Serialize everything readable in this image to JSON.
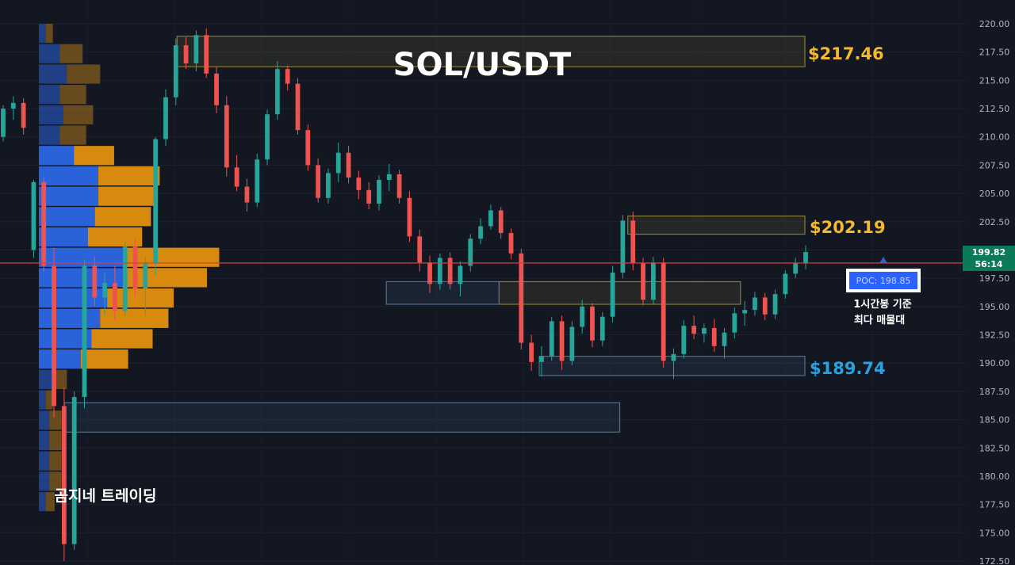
{
  "chart_data": {
    "type": "candlestick",
    "title": "SOL/USDT",
    "watermark": "곰지네 트레이딩",
    "y_axis": {
      "range": [
        172.5,
        220.3
      ],
      "ticks": [
        "220.00",
        "217.50",
        "215.00",
        "212.50",
        "210.00",
        "207.50",
        "205.00",
        "202.50",
        "200.00",
        "197.50",
        "195.00",
        "192.50",
        "190.00",
        "187.50",
        "185.00",
        "182.50",
        "180.00",
        "177.50",
        "175.00",
        "172.50"
      ],
      "grid": true
    },
    "current_price": {
      "value": "199.82",
      "countdown": "56:14",
      "line_level": 198.85,
      "color": "#e53935"
    },
    "levels": [
      {
        "label": "$217.46",
        "color": "#f5b82e"
      },
      {
        "label": "$202.19",
        "color": "#f5b82e"
      },
      {
        "label": "$189.74",
        "color": "#29a3e0"
      }
    ],
    "zones": [
      {
        "kind": "resistance",
        "y_top": 218.9,
        "y_bottom": 216.2,
        "x_from": 0.22,
        "x_to": 1.0
      },
      {
        "kind": "resistance",
        "y_top": 203.0,
        "y_bottom": 201.4,
        "x_from": 0.78,
        "x_to": 1.0
      },
      {
        "kind": "resistance",
        "y_top": 197.2,
        "y_bottom": 195.2,
        "x_from": 0.62,
        "x_to": 0.92
      },
      {
        "kind": "support",
        "y_top": 197.2,
        "y_bottom": 195.2,
        "x_from": 0.48,
        "x_to": 0.62
      },
      {
        "kind": "support",
        "y_top": 190.6,
        "y_bottom": 188.9,
        "x_from": 0.67,
        "x_to": 1.0
      },
      {
        "kind": "support",
        "y_top": 186.5,
        "y_bottom": 183.9,
        "x_from": 0.08,
        "x_to": 0.77
      }
    ],
    "poc": {
      "label": "POC: 198.85",
      "value": 198.85,
      "note_line1": "1시간봉 기준",
      "note_line2": "최다 매물대"
    },
    "volume_profile": [
      {
        "price": 219.1,
        "buy": 0.04,
        "sell": 0.04
      },
      {
        "price": 217.3,
        "buy": 0.12,
        "sell": 0.13
      },
      {
        "price": 215.5,
        "buy": 0.16,
        "sell": 0.19
      },
      {
        "price": 213.7,
        "buy": 0.12,
        "sell": 0.15
      },
      {
        "price": 211.9,
        "buy": 0.14,
        "sell": 0.17
      },
      {
        "price": 210.1,
        "buy": 0.12,
        "sell": 0.15
      },
      {
        "price": 208.3,
        "buy": 0.2,
        "sell": 0.23
      },
      {
        "price": 206.5,
        "buy": 0.34,
        "sell": 0.35
      },
      {
        "price": 204.7,
        "buy": 0.34,
        "sell": 0.33
      },
      {
        "price": 202.9,
        "buy": 0.32,
        "sell": 0.32
      },
      {
        "price": 201.1,
        "buy": 0.28,
        "sell": 0.31
      },
      {
        "price": 199.3,
        "buy": 0.49,
        "sell": 0.54
      },
      {
        "price": 197.5,
        "buy": 0.48,
        "sell": 0.48
      },
      {
        "price": 195.7,
        "buy": 0.39,
        "sell": 0.38
      },
      {
        "price": 193.9,
        "buy": 0.35,
        "sell": 0.39
      },
      {
        "price": 192.1,
        "buy": 0.3,
        "sell": 0.35
      },
      {
        "price": 190.3,
        "buy": 0.24,
        "sell": 0.27
      },
      {
        "price": 188.5,
        "buy": 0.08,
        "sell": 0.08
      },
      {
        "price": 186.7,
        "buy": 0.04,
        "sell": 0.04
      },
      {
        "price": 184.9,
        "buy": 0.06,
        "sell": 0.07
      },
      {
        "price": 183.1,
        "buy": 0.06,
        "sell": 0.07
      },
      {
        "price": 181.3,
        "buy": 0.06,
        "sell": 0.07
      },
      {
        "price": 179.5,
        "buy": 0.06,
        "sell": 0.07
      },
      {
        "price": 177.7,
        "buy": 0.04,
        "sell": 0.05
      }
    ],
    "candles": [
      [
        210.0,
        212.8,
        209.6,
        212.5
      ],
      [
        212.5,
        213.6,
        211.5,
        213.0
      ],
      [
        213.0,
        213.4,
        210.2,
        210.8
      ],
      [
        200.0,
        206.2,
        199.3,
        206.0
      ],
      [
        206.0,
        206.4,
        198.1,
        198.6
      ],
      [
        198.6,
        200.2,
        185.2,
        186.2
      ],
      [
        186.2,
        187.8,
        172.5,
        174.0
      ],
      [
        174.0,
        187.5,
        173.5,
        187.0
      ],
      [
        187.0,
        199.2,
        186.0,
        198.6
      ],
      [
        198.6,
        199.4,
        195.0,
        195.8
      ],
      [
        195.8,
        198.0,
        194.2,
        197.1
      ],
      [
        197.1,
        198.6,
        193.7,
        194.6
      ],
      [
        194.6,
        200.7,
        194.2,
        200.3
      ],
      [
        200.3,
        201.0,
        195.9,
        196.6
      ],
      [
        196.6,
        199.4,
        194.2,
        198.8
      ],
      [
        198.8,
        210.0,
        197.7,
        209.8
      ],
      [
        209.8,
        214.2,
        209.2,
        213.5
      ],
      [
        213.5,
        218.7,
        212.8,
        218.1
      ],
      [
        218.1,
        218.8,
        216.0,
        216.5
      ],
      [
        216.5,
        219.4,
        215.8,
        219.0
      ],
      [
        219.0,
        219.6,
        215.2,
        215.6
      ],
      [
        215.6,
        216.2,
        212.1,
        212.8
      ],
      [
        212.8,
        213.6,
        206.5,
        207.3
      ],
      [
        207.3,
        208.4,
        205.2,
        205.6
      ],
      [
        205.6,
        206.3,
        203.4,
        204.2
      ],
      [
        204.2,
        208.5,
        203.8,
        208.0
      ],
      [
        208.0,
        212.4,
        207.5,
        212.0
      ],
      [
        212.0,
        216.7,
        211.5,
        216.0
      ],
      [
        216.0,
        216.3,
        214.1,
        214.7
      ],
      [
        214.7,
        215.2,
        210.2,
        210.6
      ],
      [
        210.6,
        211.1,
        207.0,
        207.5
      ],
      [
        207.5,
        208.1,
        204.2,
        204.6
      ],
      [
        204.6,
        207.2,
        204.1,
        206.8
      ],
      [
        206.8,
        209.5,
        206.0,
        208.6
      ],
      [
        208.6,
        209.2,
        205.9,
        206.4
      ],
      [
        206.4,
        207.0,
        204.5,
        205.3
      ],
      [
        205.3,
        206.0,
        203.6,
        204.1
      ],
      [
        204.1,
        206.6,
        203.5,
        206.2
      ],
      [
        206.2,
        207.6,
        205.2,
        206.7
      ],
      [
        206.7,
        207.1,
        204.1,
        204.6
      ],
      [
        204.6,
        205.2,
        200.7,
        201.2
      ],
      [
        201.2,
        201.8,
        198.1,
        198.9
      ],
      [
        198.9,
        199.5,
        196.2,
        197.0
      ],
      [
        197.0,
        199.7,
        196.5,
        199.3
      ],
      [
        199.3,
        199.8,
        196.5,
        197.0
      ],
      [
        197.0,
        199.0,
        195.9,
        198.6
      ],
      [
        198.6,
        201.4,
        198.1,
        201.0
      ],
      [
        201.0,
        202.8,
        200.5,
        202.1
      ],
      [
        202.1,
        204.0,
        201.8,
        203.5
      ],
      [
        203.5,
        203.8,
        201.0,
        201.5
      ],
      [
        201.5,
        201.9,
        199.2,
        199.7
      ],
      [
        199.7,
        200.1,
        191.2,
        191.8
      ],
      [
        191.8,
        192.5,
        189.3,
        190.1
      ],
      [
        190.1,
        191.5,
        188.8,
        190.6
      ],
      [
        190.6,
        194.1,
        190.2,
        193.7
      ],
      [
        193.7,
        194.2,
        189.4,
        190.2
      ],
      [
        190.2,
        193.7,
        189.8,
        193.2
      ],
      [
        193.2,
        195.6,
        192.6,
        195.0
      ],
      [
        195.0,
        195.3,
        191.4,
        192.0
      ],
      [
        192.0,
        194.5,
        191.5,
        194.1
      ],
      [
        194.1,
        198.6,
        193.6,
        198.0
      ],
      [
        198.0,
        203.1,
        197.5,
        202.6
      ],
      [
        202.6,
        203.4,
        198.2,
        198.8
      ],
      [
        198.8,
        199.3,
        195.1,
        195.6
      ],
      [
        195.6,
        199.4,
        195.2,
        198.9
      ],
      [
        198.9,
        199.3,
        189.6,
        190.2
      ],
      [
        190.2,
        191.3,
        188.6,
        190.8
      ],
      [
        190.8,
        193.8,
        190.4,
        193.3
      ],
      [
        193.3,
        194.2,
        192.1,
        192.6
      ],
      [
        192.6,
        193.5,
        191.8,
        193.1
      ],
      [
        193.1,
        193.9,
        191.0,
        191.5
      ],
      [
        191.5,
        193.1,
        190.4,
        192.7
      ],
      [
        192.7,
        194.9,
        192.2,
        194.4
      ],
      [
        194.4,
        195.5,
        193.3,
        194.7
      ],
      [
        194.7,
        196.3,
        194.2,
        195.8
      ],
      [
        195.8,
        196.2,
        193.8,
        194.3
      ],
      [
        194.3,
        196.5,
        193.9,
        196.1
      ],
      [
        196.1,
        198.2,
        195.7,
        197.9
      ],
      [
        197.9,
        199.3,
        197.5,
        198.8
      ],
      [
        198.8,
        200.4,
        198.3,
        199.82
      ]
    ]
  }
}
